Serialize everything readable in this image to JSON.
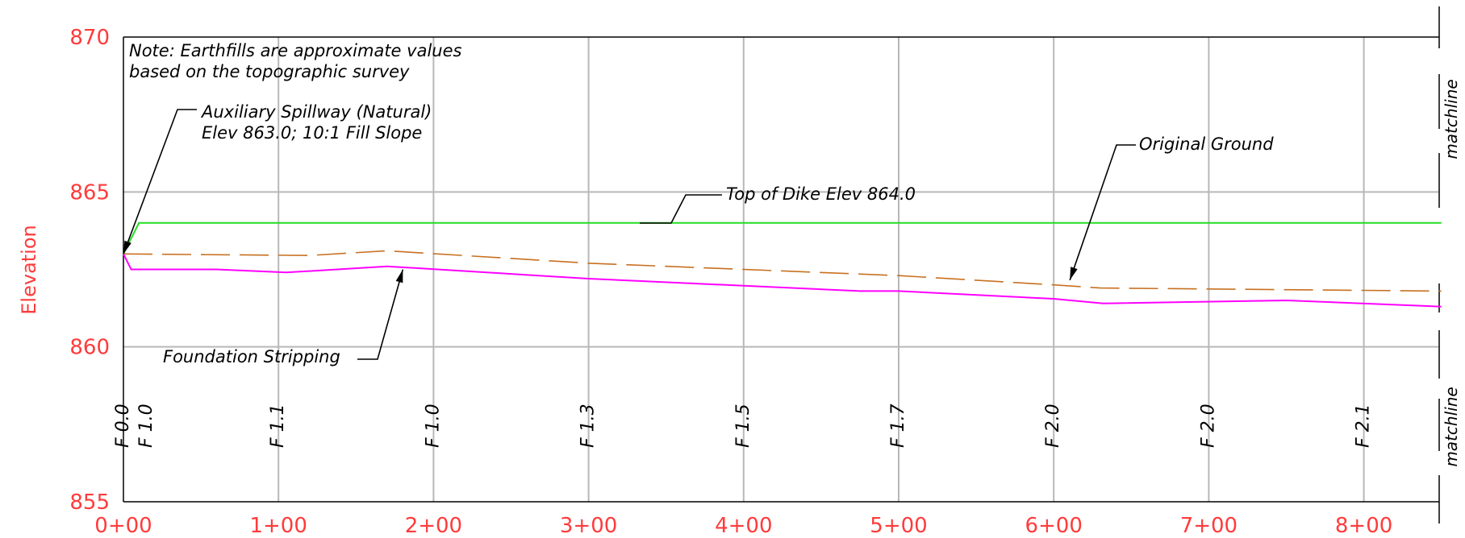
{
  "chart_data": {
    "type": "line",
    "title": "",
    "xlabel": "",
    "ylabel": "Elevation",
    "xlim": [
      0,
      850
    ],
    "ylim": [
      855,
      870
    ],
    "grid": true,
    "x_tick_values": [
      0,
      100,
      200,
      300,
      400,
      500,
      600,
      700,
      800
    ],
    "x_tick_labels": [
      "0+00",
      "1+00",
      "2+00",
      "3+00",
      "4+00",
      "5+00",
      "6+00",
      "7+00",
      "8+00"
    ],
    "y_ticks": [
      855,
      860,
      865,
      870
    ],
    "series": [
      {
        "key": "top_of_dike",
        "color": "#22dd22",
        "style": "solid",
        "points": [
          [
            0,
            863.0
          ],
          [
            10,
            864.0
          ],
          [
            850,
            864.0
          ]
        ]
      },
      {
        "key": "original_ground",
        "color": "#c87020",
        "style": "dashed",
        "points": [
          [
            0,
            863.0
          ],
          [
            120,
            862.95
          ],
          [
            170,
            863.1
          ],
          [
            300,
            862.7
          ],
          [
            500,
            862.3
          ],
          [
            600,
            862.0
          ],
          [
            630,
            861.9
          ],
          [
            850,
            861.8
          ]
        ]
      },
      {
        "key": "foundation_stripping",
        "color": "#ff00ff",
        "style": "solid",
        "points": [
          [
            0,
            863.0
          ],
          [
            5,
            862.5
          ],
          [
            60,
            862.5
          ],
          [
            105,
            862.4
          ],
          [
            170,
            862.6
          ],
          [
            300,
            862.2
          ],
          [
            475,
            861.8
          ],
          [
            500,
            861.8
          ],
          [
            600,
            861.55
          ],
          [
            632,
            861.4
          ],
          [
            750,
            861.5
          ],
          [
            850,
            861.3
          ]
        ]
      }
    ],
    "f_values": [
      {
        "x": 0,
        "label": "F 0.0"
      },
      {
        "x": 15,
        "label": "F 1.0"
      },
      {
        "x": 100,
        "label": "F 1.1"
      },
      {
        "x": 200,
        "label": "F 1.0"
      },
      {
        "x": 300,
        "label": "F 1.3"
      },
      {
        "x": 400,
        "label": "F 1.5"
      },
      {
        "x": 500,
        "label": "F 1.7"
      },
      {
        "x": 600,
        "label": "F 2.0"
      },
      {
        "x": 700,
        "label": "F 2.0"
      },
      {
        "x": 800,
        "label": "F 2.1"
      }
    ],
    "annotations": {
      "note_line1": "Note: Earthfills are approximate values",
      "note_line2": "based on the topographic survey",
      "spillway_line1": "Auxiliary Spillway (Natural)",
      "spillway_line2": "Elev 863.0; 10:1 Fill Slope",
      "top_of_dike": "Top of Dike Elev 864.0",
      "original_ground": "Original Ground",
      "foundation_stripping": "Foundation Stripping"
    },
    "matchline_label": "matchline"
  }
}
